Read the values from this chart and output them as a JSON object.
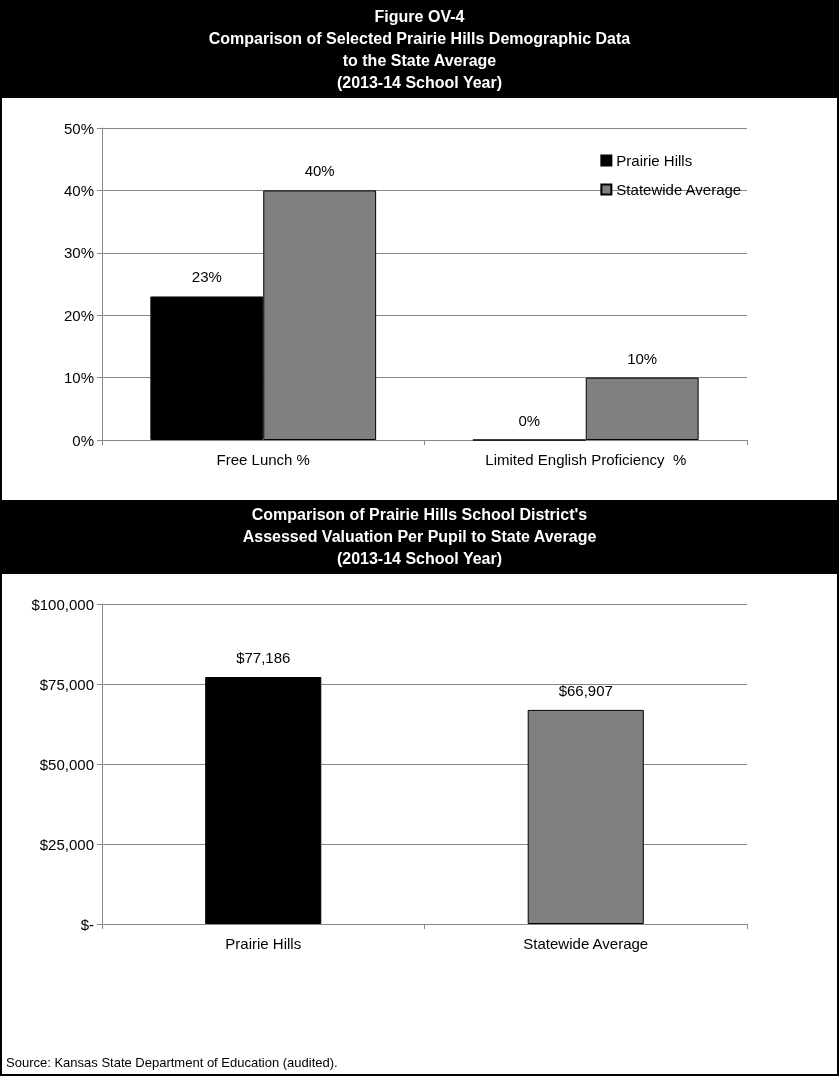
{
  "chart_data": [
    {
      "type": "bar",
      "title": "Figure OV-4\nComparison of Selected Prairie Hills Demographic Data\nto the State Average\n(2013-14 School Year)",
      "categories": [
        "Free Lunch %",
        "Limited English Proficiency  %"
      ],
      "series": [
        {
          "name": "Prairie Hills",
          "color": "#000000",
          "values": [
            23,
            0
          ],
          "value_labels": [
            "23%",
            "0%"
          ]
        },
        {
          "name": "Statewide Average",
          "color": "#808080",
          "values": [
            40,
            10
          ],
          "value_labels": [
            "40%",
            "10%"
          ]
        }
      ],
      "ylim": [
        0,
        50
      ],
      "yticks": [
        {
          "value": 0,
          "label": "0%"
        },
        {
          "value": 10,
          "label": "10%"
        },
        {
          "value": 20,
          "label": "20%"
        },
        {
          "value": 30,
          "label": "30%"
        },
        {
          "value": 40,
          "label": "40%"
        },
        {
          "value": 50,
          "label": "50%"
        }
      ],
      "grid": "y",
      "legend": "top right"
    },
    {
      "type": "bar",
      "title": "Comparison of Prairie Hills School District's\nAssessed Valuation Per Pupil to State Average\n(2013-14 School Year)",
      "categories": [
        "Prairie Hills",
        "Statewide Average"
      ],
      "values": [
        77186,
        66907
      ],
      "colors": [
        "#000000",
        "#808080"
      ],
      "value_labels": [
        "$77,186",
        "$66,907"
      ],
      "ylim": [
        0,
        100000
      ],
      "yticks": [
        {
          "value": 0,
          "label": "$-"
        },
        {
          "value": 25000,
          "label": "$25,000"
        },
        {
          "value": 50000,
          "label": "$50,000"
        },
        {
          "value": 75000,
          "label": "$75,000"
        },
        {
          "value": 100000,
          "label": "$100,000"
        }
      ],
      "grid": "y",
      "annotations": [
        "Source: Kansas State Department of Education (audited)."
      ]
    }
  ]
}
